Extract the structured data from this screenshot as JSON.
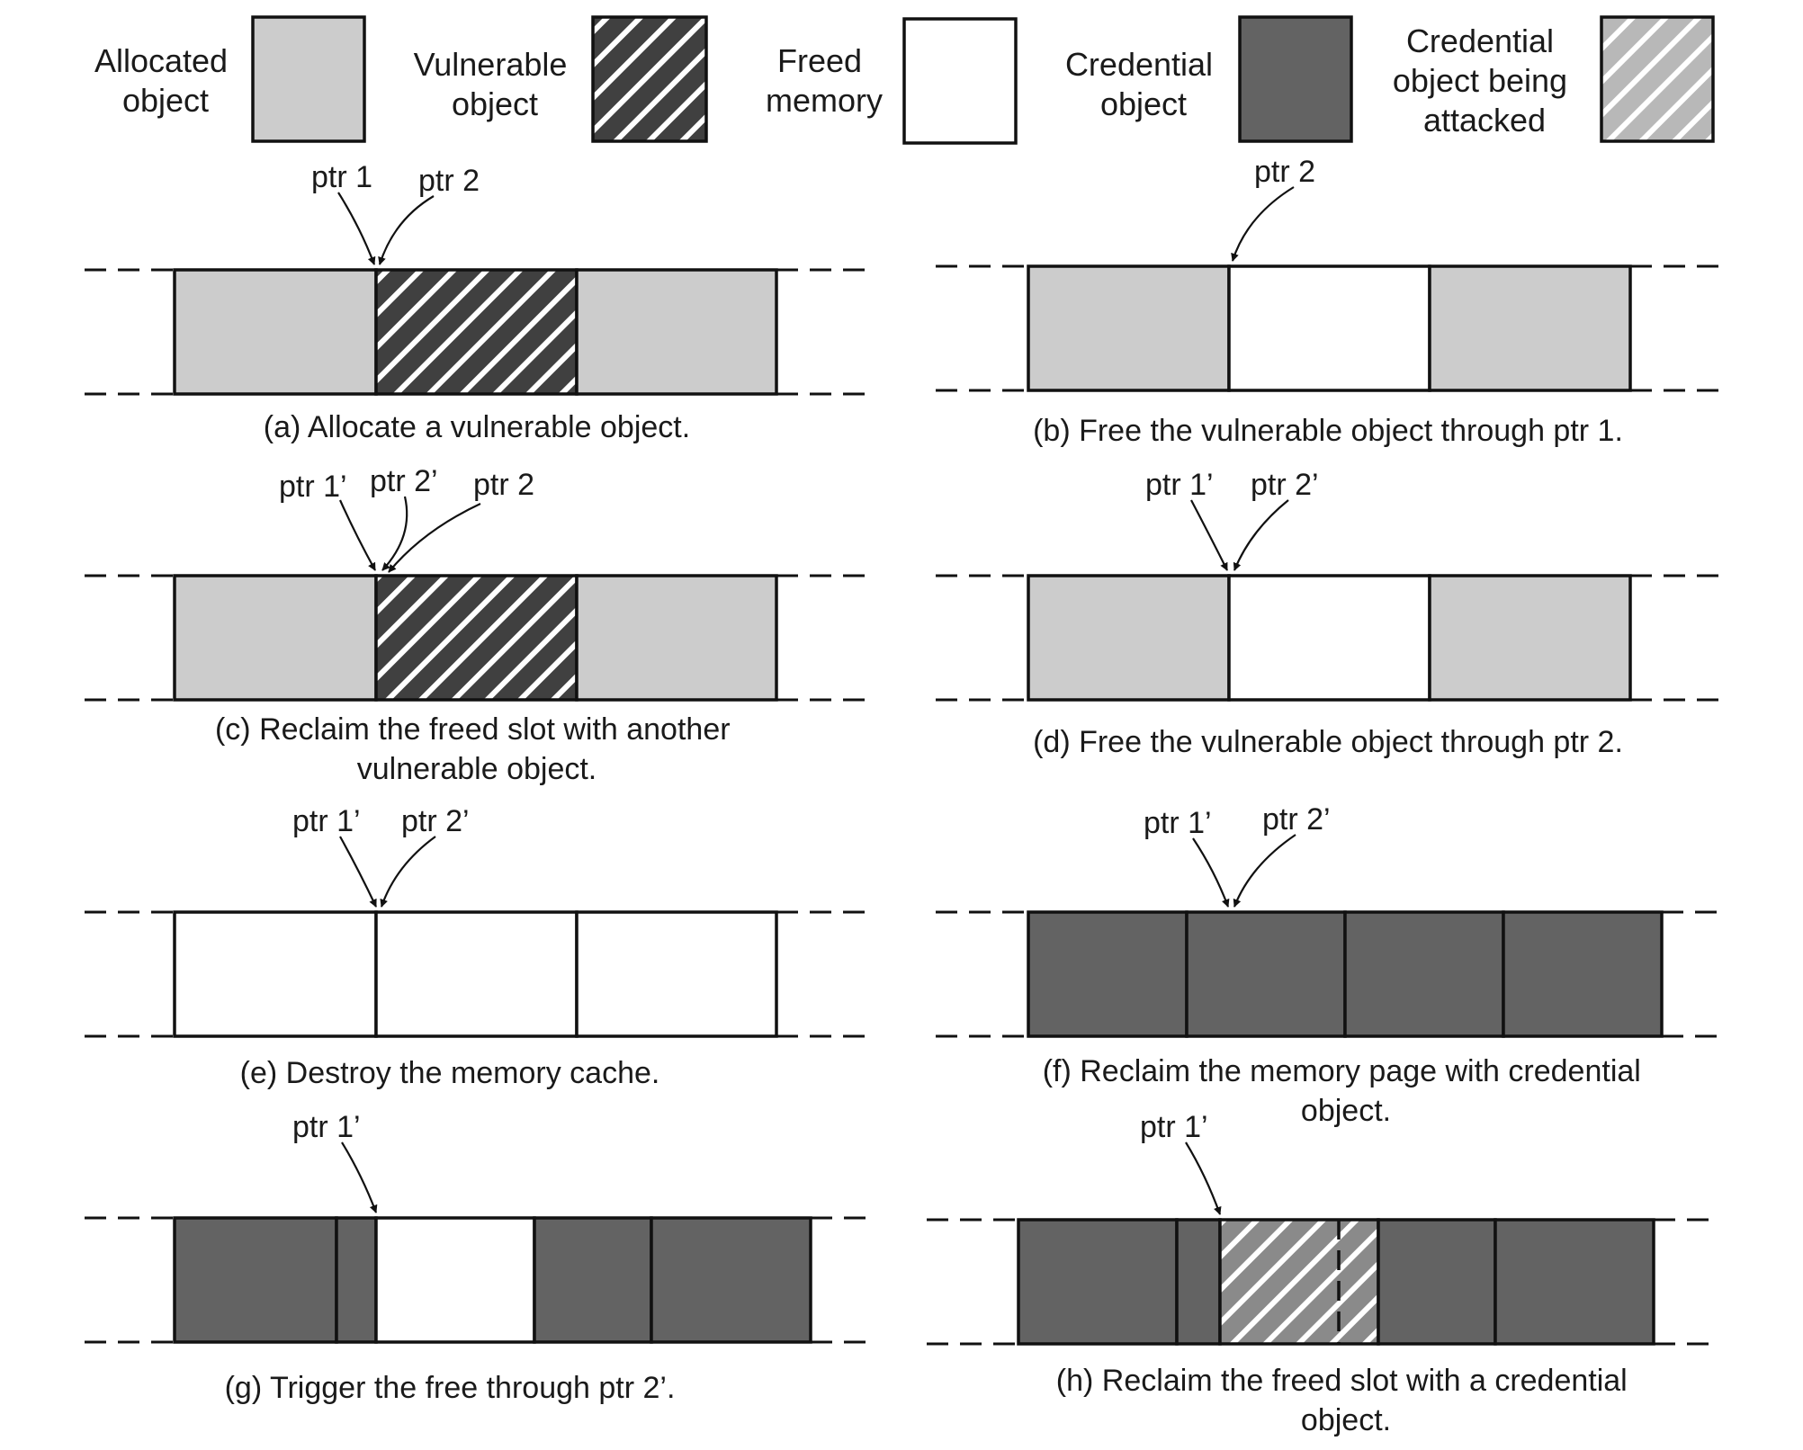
{
  "legend": {
    "allocated": [
      "Allocated",
      "object"
    ],
    "vulnerable": [
      "Vulnerable",
      "object"
    ],
    "freed": [
      "Freed",
      "memory"
    ],
    "credential": [
      "Credential",
      "object"
    ],
    "attacked": [
      "Credential",
      "object being",
      "attacked"
    ]
  },
  "colors": {
    "allocated": "#cccccc",
    "vulnerable": "#404040",
    "freed": "#ffffff",
    "credential": "#636363",
    "attacked": "#b8b8b8",
    "attacked_in_diagram": "#8a8a8a",
    "outline": "#111111"
  },
  "panels": [
    {
      "id": "a",
      "caption": [
        "(a) Allocate a vulnerable object."
      ],
      "pointers": [
        "ptr 1",
        "ptr 2"
      ]
    },
    {
      "id": "b",
      "caption": [
        "(b) Free the vulnerable object through ptr 1."
      ],
      "pointers": [
        "ptr 2"
      ]
    },
    {
      "id": "c",
      "caption": [
        "(c) Reclaim the freed slot with another",
        "vulnerable object."
      ],
      "pointers": [
        "ptr 1’",
        "ptr 2’",
        "ptr 2"
      ]
    },
    {
      "id": "d",
      "caption": [
        "(d) Free the vulnerable object through ptr 2."
      ],
      "pointers": [
        "ptr 1’",
        "ptr 2’"
      ]
    },
    {
      "id": "e",
      "caption": [
        "(e) Destroy the memory cache."
      ],
      "pointers": [
        "ptr 1’",
        "ptr 2’"
      ]
    },
    {
      "id": "f",
      "caption": [
        "(f) Reclaim the memory page with credential",
        "object."
      ],
      "pointers": [
        "ptr 1’",
        "ptr 2’"
      ]
    },
    {
      "id": "g",
      "caption": [
        "(g) Trigger the free through ptr 2’."
      ],
      "pointers": [
        "ptr 1’"
      ]
    },
    {
      "id": "h",
      "caption": [
        "(h) Reclaim the freed slot with a credential",
        "object."
      ],
      "pointers": [
        "ptr 1’"
      ]
    }
  ]
}
